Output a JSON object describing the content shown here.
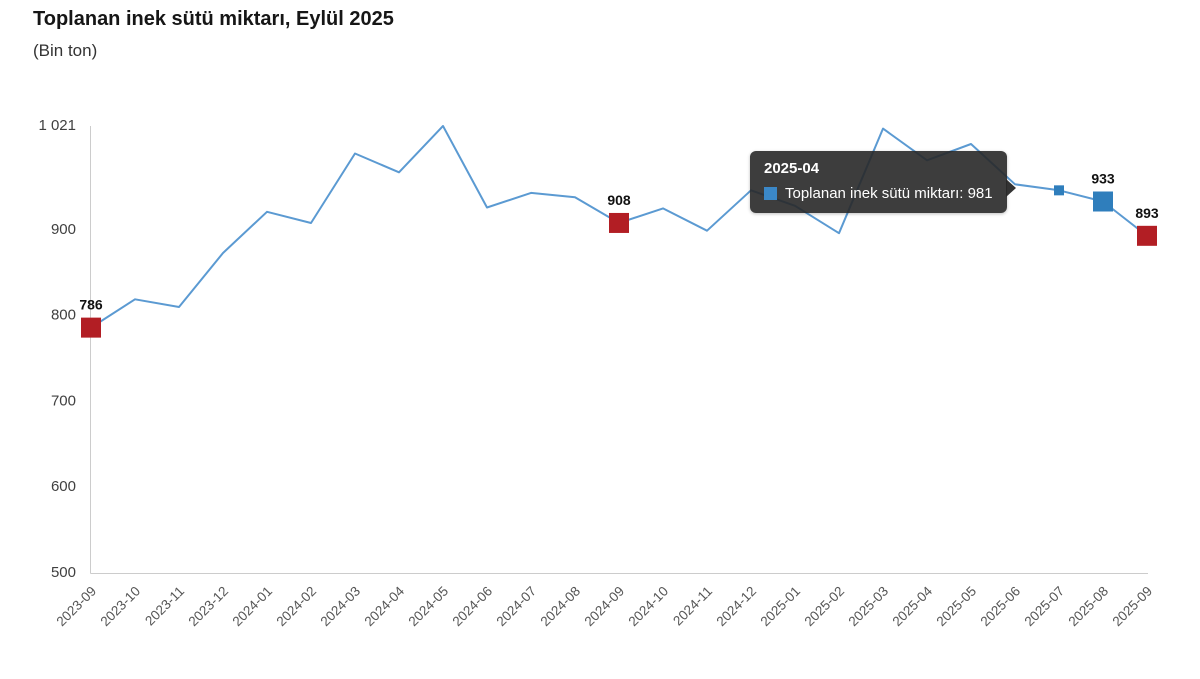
{
  "title": "Toplanan inek sütü miktarı, Eylül 2025",
  "subtitle": "(Bin ton)",
  "tooltip": {
    "header": "2025-04",
    "series_text": "Toplanan inek sütü miktarı: 981",
    "series": "Toplanan inek sütü miktarı",
    "value": "981",
    "swatch_color": "#3b88c8"
  },
  "colors": {
    "line": "#5b9ad2",
    "red_marker": "#b21e24",
    "blue_marker": "#2f7ebc",
    "axis_line": "#cccccc",
    "ytick_text": "#404040",
    "xtick_text": "#555555",
    "point_label_text": "#111111"
  },
  "chart_data": {
    "type": "line",
    "title": "Toplanan inek sütü miktarı, Eylül 2025",
    "subtitle": "(Bin ton)",
    "xlabel": "",
    "ylabel": "Bin ton",
    "grid": false,
    "legend": false,
    "ylim": [
      500,
      1021
    ],
    "yticks": [
      500,
      600,
      700,
      800,
      900,
      1021
    ],
    "ytick_labels": [
      "500",
      "600",
      "700",
      "800",
      "900",
      "1 021"
    ],
    "categories": [
      "2023-09",
      "2023-10",
      "2023-11",
      "2023-12",
      "2024-01",
      "2024-02",
      "2024-03",
      "2024-04",
      "2024-05",
      "2024-06",
      "2024-07",
      "2024-08",
      "2024-09",
      "2024-10",
      "2024-11",
      "2024-12",
      "2025-01",
      "2025-02",
      "2025-03",
      "2025-04",
      "2025-05",
      "2025-06",
      "2025-07",
      "2025-08",
      "2025-09"
    ],
    "values": [
      786,
      819,
      810,
      873,
      921,
      908,
      989,
      967,
      1021,
      926,
      943,
      938,
      908,
      925,
      899,
      946,
      928,
      896,
      1018,
      981,
      1000,
      953,
      946,
      933,
      893
    ],
    "hovered_point": {
      "category": "2025-04",
      "value": 981
    },
    "highlight_points": [
      {
        "category": "2023-09",
        "value": 786,
        "label": "786",
        "color": "red",
        "size": 20
      },
      {
        "category": "2024-09",
        "value": 908,
        "label": "908",
        "color": "red",
        "size": 20
      },
      {
        "category": "2025-07",
        "value": 946,
        "label": "",
        "color": "blue",
        "size": 10
      },
      {
        "category": "2025-08",
        "value": 933,
        "label": "933",
        "color": "blue",
        "size": 20
      },
      {
        "category": "2025-09",
        "value": 893,
        "label": "893",
        "color": "red",
        "size": 20
      }
    ]
  }
}
